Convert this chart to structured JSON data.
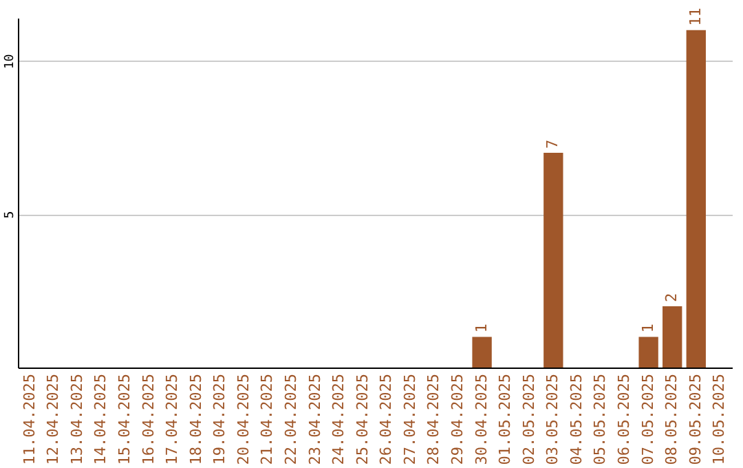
{
  "chart_data": {
    "type": "bar",
    "categories": [
      "11.04.2025",
      "12.04.2025",
      "13.04.2025",
      "14.04.2025",
      "15.04.2025",
      "16.04.2025",
      "17.04.2025",
      "18.04.2025",
      "19.04.2025",
      "20.04.2025",
      "21.04.2025",
      "22.04.2025",
      "23.04.2025",
      "24.04.2025",
      "25.04.2025",
      "26.04.2025",
      "27.04.2025",
      "28.04.2025",
      "29.04.2025",
      "30.04.2025",
      "01.05.2025",
      "02.05.2025",
      "03.05.2025",
      "04.05.2025",
      "05.05.2025",
      "06.05.2025",
      "07.05.2025",
      "08.05.2025",
      "09.05.2025",
      "10.05.2025"
    ],
    "values": [
      0,
      0,
      0,
      0,
      0,
      0,
      0,
      0,
      0,
      0,
      0,
      0,
      0,
      0,
      0,
      0,
      0,
      0,
      0,
      1,
      0,
      0,
      7,
      0,
      0,
      0,
      1,
      2,
      11,
      0
    ],
    "value_labels": [
      null,
      null,
      null,
      null,
      null,
      null,
      null,
      null,
      null,
      null,
      null,
      null,
      null,
      null,
      null,
      null,
      null,
      null,
      null,
      "1",
      null,
      null,
      "7",
      null,
      null,
      null,
      "1",
      "2",
      "11",
      null
    ],
    "color": "#a0572a",
    "ylim": [
      0,
      11.4
    ],
    "yticks": [
      5,
      10
    ],
    "grid": "y"
  }
}
